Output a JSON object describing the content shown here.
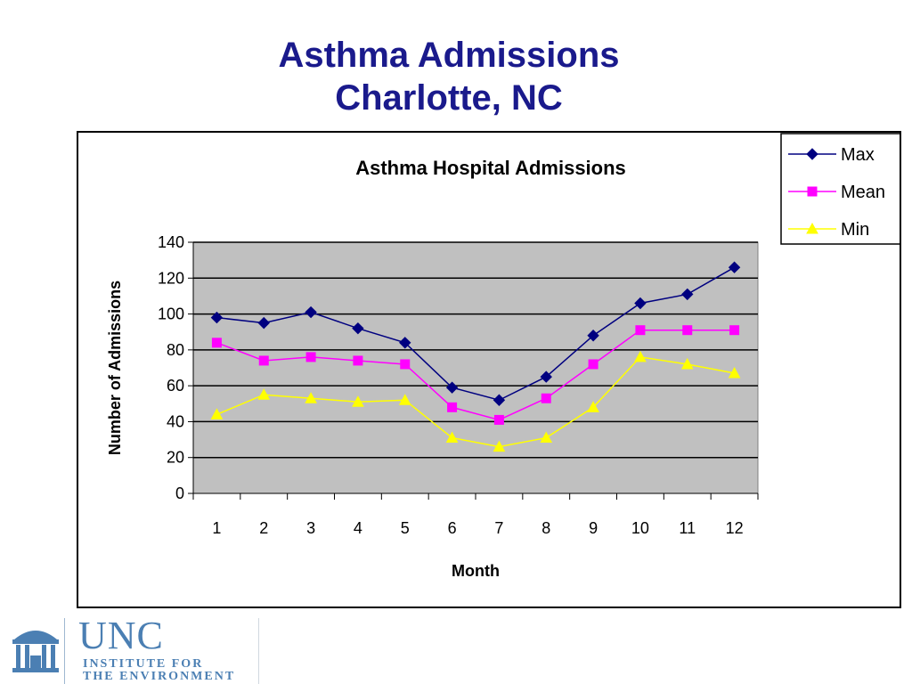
{
  "slide": {
    "title_line1": "Asthma Admissions",
    "title_line2": "Charlotte, NC"
  },
  "logo": {
    "name": "UNC",
    "line1": "INSTITUTE FOR",
    "line2": "THE ENVIRONMENT"
  },
  "colors": {
    "title": "#1a1a8c",
    "plot_background": "#c0c0c0",
    "max": "#000080",
    "mean": "#ff00ff",
    "min": "#ffff00"
  },
  "chart_data": {
    "type": "line",
    "title": "Asthma Hospital Admissions",
    "xlabel": "Month",
    "ylabel": "Number of Admissions",
    "categories": [
      "1",
      "2",
      "3",
      "4",
      "5",
      "6",
      "7",
      "8",
      "9",
      "10",
      "11",
      "12"
    ],
    "ylim": [
      0,
      140
    ],
    "yticks": [
      0,
      20,
      40,
      60,
      80,
      100,
      120,
      140
    ],
    "grid": true,
    "legend_position": "top-right",
    "series": [
      {
        "name": "Max",
        "marker": "diamond",
        "color": "#000080",
        "values": [
          98,
          95,
          101,
          92,
          84,
          59,
          52,
          65,
          88,
          106,
          111,
          126
        ]
      },
      {
        "name": "Mean",
        "marker": "square",
        "color": "#ff00ff",
        "values": [
          84,
          74,
          76,
          74,
          72,
          48,
          41,
          53,
          72,
          91,
          91,
          91
        ]
      },
      {
        "name": "Min",
        "marker": "triangle",
        "color": "#ffff00",
        "values": [
          44,
          55,
          53,
          51,
          52,
          31,
          26,
          31,
          48,
          76,
          72,
          67
        ]
      }
    ]
  }
}
